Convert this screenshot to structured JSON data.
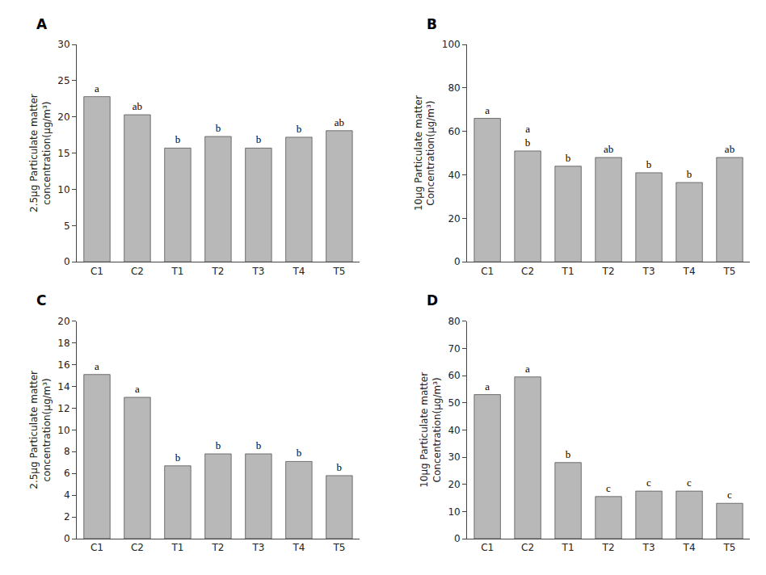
{
  "chart_data": [
    {
      "type": "bar",
      "title": "A",
      "categories": [
        "C1",
        "C2",
        "T1",
        "T2",
        "T3",
        "T4",
        "T5"
      ],
      "values": [
        22.8,
        20.3,
        15.7,
        17.3,
        15.7,
        17.2,
        18.1
      ],
      "annotations": [
        "a",
        "ab",
        "b",
        "b",
        "b",
        "b",
        "ab"
      ],
      "ylabel": "2.5μg Particulate matter\nconcentration(μg/m³)",
      "ylim": [
        0,
        30
      ],
      "yticks": [
        0,
        5,
        10,
        15,
        20,
        25,
        30
      ],
      "color": "#b8b8b8",
      "grid": false
    },
    {
      "type": "bar",
      "title": "B",
      "categories": [
        "C1",
        "C2",
        "T1",
        "T2",
        "T3",
        "T4",
        "T5"
      ],
      "values": [
        66.0,
        51.0,
        44.0,
        48.0,
        41.0,
        36.5,
        48.0
      ],
      "annotations": [
        "a",
        "a\nb",
        "b",
        "ab",
        "b",
        "b",
        "ab"
      ],
      "ylabel": "10μg Particulate matter\nConcentration(μg/m³)",
      "ylim": [
        0,
        100
      ],
      "yticks": [
        0,
        20,
        40,
        60,
        80,
        100
      ],
      "color": "#b8b8b8",
      "grid": false
    },
    {
      "type": "bar",
      "title": "C",
      "categories": [
        "C1",
        "C2",
        "T1",
        "T2",
        "T3",
        "T4",
        "T5"
      ],
      "values": [
        15.1,
        13.0,
        6.7,
        7.8,
        7.8,
        7.1,
        5.8
      ],
      "annotations": [
        "a",
        "a",
        "b",
        "b",
        "b",
        "b",
        "b"
      ],
      "ylabel": "2.5μg Particulate matter\nconcentration(μg/m³)",
      "ylim": [
        0,
        20
      ],
      "yticks": [
        0,
        2,
        4,
        6,
        8,
        10,
        12,
        14,
        16,
        18,
        20
      ],
      "color": "#b8b8b8",
      "grid": false
    },
    {
      "type": "bar",
      "title": "D",
      "categories": [
        "C1",
        "C2",
        "T1",
        "T2",
        "T3",
        "T4",
        "T5"
      ],
      "values": [
        53.0,
        59.5,
        28.0,
        15.5,
        17.5,
        17.5,
        13.0
      ],
      "annotations": [
        "a",
        "a",
        "b",
        "c",
        "c",
        "c",
        "c"
      ],
      "ylabel": "10μg Particulate matter\nConcentration(μg/m³)",
      "ylim": [
        0,
        80
      ],
      "yticks": [
        0,
        10,
        20,
        30,
        40,
        50,
        60,
        70,
        80
      ],
      "color": "#b8b8b8",
      "grid": false
    }
  ]
}
